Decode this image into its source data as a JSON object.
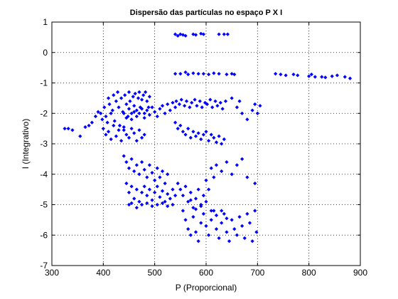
{
  "chart_data": {
    "type": "scatter",
    "title": "Dispersão das partículas no espaço P X I",
    "xlabel": "P (Proporcional)",
    "ylabel": "I (Integrativo)",
    "xlim": [
      300,
      900
    ],
    "ylim": [
      -7,
      1
    ],
    "xticks": [
      300,
      400,
      500,
      600,
      700,
      800,
      900
    ],
    "yticks": [
      1,
      0,
      -1,
      -2,
      -3,
      -4,
      -5,
      -6,
      -7
    ],
    "grid": true,
    "marker": "diamond",
    "color": "#0000ff",
    "series": [
      {
        "points": [
          [
            540,
            0.6
          ],
          [
            545,
            0.55
          ],
          [
            550,
            0.6
          ],
          [
            555,
            0.58
          ],
          [
            560,
            0.55
          ],
          [
            575,
            0.6
          ],
          [
            580,
            0.58
          ],
          [
            590,
            0.62
          ],
          [
            595,
            0.6
          ],
          [
            625,
            0.6
          ],
          [
            635,
            0.6
          ],
          [
            642,
            0.6
          ],
          [
            540,
            -0.7
          ],
          [
            550,
            -0.7
          ],
          [
            560,
            -0.65
          ],
          [
            565,
            -0.72
          ],
          [
            575,
            -0.68
          ],
          [
            585,
            -0.7
          ],
          [
            595,
            -0.7
          ],
          [
            605,
            -0.72
          ],
          [
            615,
            -0.68
          ],
          [
            625,
            -0.7
          ],
          [
            640,
            -0.72
          ],
          [
            650,
            -0.7
          ],
          [
            655,
            -0.72
          ],
          [
            735,
            -0.7
          ],
          [
            745,
            -0.72
          ],
          [
            755,
            -0.75
          ],
          [
            770,
            -0.72
          ],
          [
            778,
            -0.75
          ],
          [
            800,
            -0.78
          ],
          [
            805,
            -0.72
          ],
          [
            812,
            -0.8
          ],
          [
            825,
            -0.8
          ],
          [
            832,
            -0.82
          ],
          [
            845,
            -0.78
          ],
          [
            855,
            -0.75
          ],
          [
            870,
            -0.8
          ],
          [
            880,
            -0.85
          ],
          [
            325,
            -2.5
          ],
          [
            332,
            -2.5
          ],
          [
            340,
            -2.55
          ],
          [
            355,
            -2.75
          ],
          [
            365,
            -2.45
          ],
          [
            372,
            -2.4
          ],
          [
            378,
            -2.3
          ],
          [
            385,
            -2.1
          ],
          [
            390,
            -1.95
          ],
          [
            395,
            -2.0
          ],
          [
            398,
            -2.2
          ],
          [
            402,
            -1.8
          ],
          [
            405,
            -2.1
          ],
          [
            408,
            -2.3
          ],
          [
            410,
            -1.5
          ],
          [
            412,
            -1.7
          ],
          [
            415,
            -2.0
          ],
          [
            418,
            -1.9
          ],
          [
            420,
            -1.4
          ],
          [
            422,
            -2.25
          ],
          [
            425,
            -1.6
          ],
          [
            428,
            -1.3
          ],
          [
            430,
            -1.8
          ],
          [
            432,
            -2.4
          ],
          [
            435,
            -1.5
          ],
          [
            438,
            -1.95
          ],
          [
            440,
            -2.55
          ],
          [
            442,
            -1.4
          ],
          [
            445,
            -1.7
          ],
          [
            448,
            -2.1
          ],
          [
            450,
            -1.3
          ],
          [
            452,
            -1.6
          ],
          [
            455,
            -2.0
          ],
          [
            458,
            -1.45
          ],
          [
            460,
            -1.75
          ],
          [
            462,
            -1.35
          ],
          [
            465,
            -1.9
          ],
          [
            468,
            -1.5
          ],
          [
            470,
            -1.3
          ],
          [
            472,
            -1.8
          ],
          [
            475,
            -1.55
          ],
          [
            478,
            -1.4
          ],
          [
            480,
            -2.0
          ],
          [
            482,
            -1.3
          ],
          [
            485,
            -1.6
          ],
          [
            488,
            -1.8
          ],
          [
            490,
            -1.45
          ],
          [
            440,
            -2.0
          ],
          [
            445,
            -2.15
          ],
          [
            450,
            -1.85
          ],
          [
            455,
            -2.2
          ],
          [
            460,
            -1.95
          ],
          [
            465,
            -2.1
          ],
          [
            470,
            -2.0
          ],
          [
            475,
            -1.85
          ],
          [
            480,
            -2.15
          ],
          [
            485,
            -1.9
          ],
          [
            490,
            -2.05
          ],
          [
            495,
            -1.8
          ],
          [
            500,
            -1.95
          ],
          [
            505,
            -2.1
          ],
          [
            510,
            -1.85
          ],
          [
            515,
            -1.75
          ],
          [
            520,
            -2.0
          ],
          [
            525,
            -1.7
          ],
          [
            530,
            -1.9
          ],
          [
            535,
            -1.65
          ],
          [
            540,
            -1.8
          ],
          [
            542,
            -1.6
          ],
          [
            548,
            -1.7
          ],
          [
            552,
            -1.55
          ],
          [
            558,
            -1.75
          ],
          [
            562,
            -1.6
          ],
          [
            568,
            -1.8
          ],
          [
            572,
            -1.65
          ],
          [
            578,
            -1.55
          ],
          [
            582,
            -1.75
          ],
          [
            588,
            -1.6
          ],
          [
            592,
            -1.8
          ],
          [
            598,
            -1.65
          ],
          [
            602,
            -1.7
          ],
          [
            608,
            -1.55
          ],
          [
            612,
            -1.8
          ],
          [
            618,
            -1.6
          ],
          [
            622,
            -1.75
          ],
          [
            628,
            -1.65
          ],
          [
            632,
            -1.85
          ],
          [
            638,
            -1.6
          ],
          [
            400,
            -2.5
          ],
          [
            405,
            -2.7
          ],
          [
            410,
            -2.6
          ],
          [
            415,
            -2.85
          ],
          [
            420,
            -2.4
          ],
          [
            425,
            -2.75
          ],
          [
            430,
            -2.55
          ],
          [
            435,
            -2.9
          ],
          [
            440,
            -2.45
          ],
          [
            445,
            -2.7
          ],
          [
            450,
            -2.8
          ],
          [
            455,
            -2.5
          ],
          [
            460,
            -2.65
          ],
          [
            465,
            -2.9
          ],
          [
            470,
            -2.55
          ],
          [
            475,
            -2.8
          ],
          [
            480,
            -2.7
          ],
          [
            540,
            -2.3
          ],
          [
            545,
            -2.5
          ],
          [
            550,
            -2.4
          ],
          [
            555,
            -2.6
          ],
          [
            560,
            -2.7
          ],
          [
            565,
            -2.5
          ],
          [
            570,
            -2.8
          ],
          [
            575,
            -2.6
          ],
          [
            580,
            -2.75
          ],
          [
            585,
            -2.65
          ],
          [
            590,
            -2.85
          ],
          [
            595,
            -2.7
          ],
          [
            600,
            -2.6
          ],
          [
            605,
            -2.9
          ],
          [
            610,
            -2.7
          ],
          [
            615,
            -2.8
          ],
          [
            620,
            -2.95
          ],
          [
            625,
            -2.75
          ],
          [
            630,
            -3.0
          ],
          [
            635,
            -2.85
          ],
          [
            650,
            -1.5
          ],
          [
            660,
            -1.8
          ],
          [
            665,
            -1.6
          ],
          [
            670,
            -2.0
          ],
          [
            680,
            -2.2
          ],
          [
            690,
            -1.9
          ],
          [
            695,
            -1.7
          ],
          [
            700,
            -2.0
          ],
          [
            705,
            -1.75
          ],
          [
            440,
            -3.4
          ],
          [
            445,
            -3.6
          ],
          [
            450,
            -3.8
          ],
          [
            455,
            -3.5
          ],
          [
            460,
            -3.9
          ],
          [
            465,
            -3.7
          ],
          [
            470,
            -4.0
          ],
          [
            475,
            -3.6
          ],
          [
            480,
            -3.85
          ],
          [
            485,
            -4.1
          ],
          [
            490,
            -3.7
          ],
          [
            495,
            -3.95
          ],
          [
            500,
            -4.2
          ],
          [
            505,
            -3.8
          ],
          [
            510,
            -4.1
          ],
          [
            515,
            -3.9
          ],
          [
            520,
            -4.3
          ],
          [
            525,
            -4.0
          ],
          [
            445,
            -4.3
          ],
          [
            450,
            -4.6
          ],
          [
            455,
            -4.4
          ],
          [
            460,
            -4.8
          ],
          [
            465,
            -4.5
          ],
          [
            470,
            -4.9
          ],
          [
            475,
            -4.6
          ],
          [
            480,
            -4.4
          ],
          [
            485,
            -4.7
          ],
          [
            490,
            -4.5
          ],
          [
            495,
            -4.85
          ],
          [
            500,
            -4.6
          ],
          [
            505,
            -4.4
          ],
          [
            510,
            -4.75
          ],
          [
            515,
            -4.55
          ],
          [
            520,
            -4.9
          ],
          [
            525,
            -4.65
          ],
          [
            530,
            -4.8
          ],
          [
            535,
            -4.5
          ],
          [
            540,
            -4.7
          ],
          [
            450,
            -5.0
          ],
          [
            455,
            -4.95
          ],
          [
            465,
            -5.1
          ],
          [
            475,
            -5.0
          ],
          [
            485,
            -4.95
          ],
          [
            495,
            -5.05
          ],
          [
            505,
            -5.0
          ],
          [
            515,
            -4.95
          ],
          [
            525,
            -5.05
          ],
          [
            535,
            -5.0
          ],
          [
            545,
            -4.3
          ],
          [
            550,
            -4.5
          ],
          [
            555,
            -4.7
          ],
          [
            560,
            -4.4
          ],
          [
            565,
            -4.9
          ],
          [
            570,
            -4.6
          ],
          [
            575,
            -5.1
          ],
          [
            580,
            -4.8
          ],
          [
            585,
            -4.5
          ],
          [
            590,
            -5.0
          ],
          [
            595,
            -4.7
          ],
          [
            600,
            -4.2
          ],
          [
            605,
            -4.5
          ],
          [
            610,
            -3.8
          ],
          [
            615,
            -4.1
          ],
          [
            620,
            -3.7
          ],
          [
            630,
            -3.9
          ],
          [
            640,
            -3.6
          ],
          [
            650,
            -4.0
          ],
          [
            660,
            -3.7
          ],
          [
            670,
            -3.5
          ],
          [
            680,
            -4.1
          ],
          [
            695,
            -4.3
          ],
          [
            555,
            -5.2
          ],
          [
            560,
            -5.5
          ],
          [
            565,
            -5.8
          ],
          [
            570,
            -6.0
          ],
          [
            575,
            -5.4
          ],
          [
            580,
            -5.9
          ],
          [
            585,
            -6.2
          ],
          [
            590,
            -5.6
          ],
          [
            595,
            -5.3
          ],
          [
            600,
            -5.7
          ],
          [
            605,
            -6.0
          ],
          [
            610,
            -5.5
          ],
          [
            615,
            -5.2
          ],
          [
            620,
            -5.8
          ],
          [
            625,
            -6.1
          ],
          [
            630,
            -5.6
          ],
          [
            635,
            -5.3
          ],
          [
            640,
            -5.9
          ],
          [
            645,
            -6.2
          ],
          [
            650,
            -5.5
          ],
          [
            655,
            -5.8
          ],
          [
            660,
            -6.0
          ],
          [
            665,
            -5.4
          ],
          [
            670,
            -5.7
          ],
          [
            675,
            -6.1
          ],
          [
            680,
            -5.3
          ],
          [
            685,
            -5.6
          ],
          [
            690,
            -6.2
          ],
          [
            695,
            -5.2
          ],
          [
            698,
            -5.9
          ],
          [
            570,
            -4.85
          ],
          [
            580,
            -5.15
          ],
          [
            590,
            -5.05
          ],
          [
            600,
            -4.9
          ],
          [
            610,
            -5.2
          ],
          [
            620,
            -5.35
          ],
          [
            630,
            -5.2
          ],
          [
            640,
            -5.45
          ]
        ]
      }
    ]
  }
}
